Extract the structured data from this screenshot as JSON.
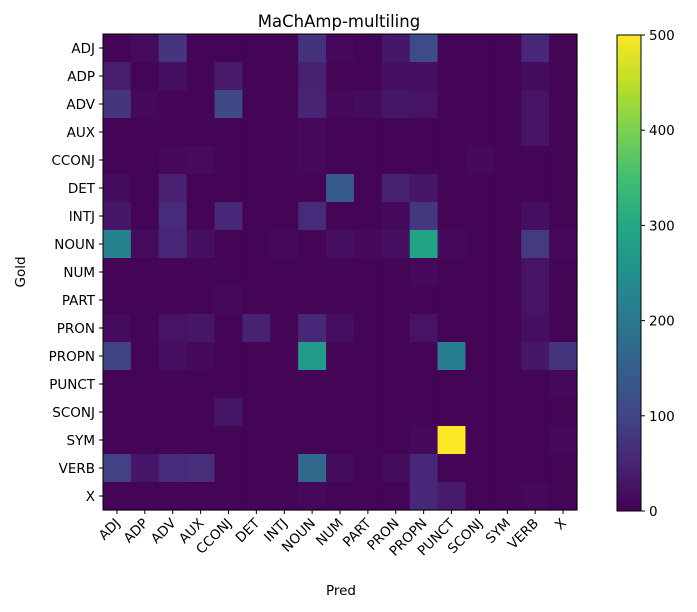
{
  "chart_data": {
    "type": "heatmap",
    "title": "MaChAmp-multiling",
    "xlabel": "Pred",
    "ylabel": "Gold",
    "x_categories": [
      "ADJ",
      "ADP",
      "ADV",
      "AUX",
      "CCONJ",
      "DET",
      "INTJ",
      "NOUN",
      "NUM",
      "PART",
      "PRON",
      "PROPN",
      "PUNCT",
      "SCONJ",
      "SYM",
      "VERB",
      "X"
    ],
    "y_categories": [
      "ADJ",
      "ADP",
      "ADV",
      "AUX",
      "CCONJ",
      "DET",
      "INTJ",
      "NOUN",
      "NUM",
      "PART",
      "PRON",
      "PROPN",
      "PUNCT",
      "SCONJ",
      "SYM",
      "VERB",
      "X"
    ],
    "values": [
      [
        5,
        15,
        75,
        5,
        5,
        5,
        5,
        70,
        10,
        5,
        30,
        115,
        5,
        5,
        5,
        55,
        5
      ],
      [
        40,
        5,
        20,
        5,
        35,
        5,
        5,
        45,
        5,
        5,
        20,
        20,
        5,
        5,
        5,
        15,
        5
      ],
      [
        75,
        10,
        5,
        5,
        110,
        5,
        5,
        50,
        10,
        15,
        30,
        25,
        5,
        5,
        5,
        25,
        5
      ],
      [
        5,
        5,
        5,
        5,
        5,
        5,
        5,
        10,
        5,
        5,
        5,
        5,
        5,
        5,
        5,
        25,
        5
      ],
      [
        5,
        5,
        10,
        15,
        5,
        5,
        5,
        10,
        5,
        5,
        5,
        5,
        5,
        10,
        5,
        5,
        5
      ],
      [
        15,
        5,
        45,
        5,
        5,
        5,
        5,
        5,
        140,
        5,
        45,
        30,
        5,
        5,
        5,
        5,
        5
      ],
      [
        30,
        5,
        60,
        5,
        55,
        5,
        5,
        60,
        5,
        5,
        10,
        80,
        5,
        5,
        5,
        20,
        5
      ],
      [
        220,
        15,
        55,
        20,
        5,
        5,
        10,
        5,
        20,
        10,
        20,
        290,
        10,
        5,
        5,
        85,
        10
      ],
      [
        5,
        5,
        5,
        5,
        5,
        5,
        5,
        5,
        5,
        5,
        5,
        10,
        5,
        5,
        5,
        25,
        5
      ],
      [
        5,
        5,
        5,
        5,
        10,
        5,
        5,
        5,
        5,
        5,
        5,
        5,
        5,
        5,
        5,
        25,
        5
      ],
      [
        15,
        5,
        25,
        30,
        5,
        45,
        5,
        55,
        20,
        5,
        5,
        25,
        5,
        5,
        5,
        20,
        5
      ],
      [
        100,
        5,
        20,
        10,
        5,
        5,
        5,
        270,
        5,
        5,
        5,
        5,
        210,
        5,
        5,
        30,
        75
      ],
      [
        5,
        5,
        5,
        5,
        5,
        5,
        5,
        5,
        5,
        5,
        5,
        5,
        5,
        5,
        5,
        5,
        10
      ],
      [
        5,
        5,
        5,
        5,
        30,
        5,
        5,
        5,
        5,
        5,
        5,
        5,
        5,
        5,
        5,
        5,
        5
      ],
      [
        5,
        5,
        5,
        5,
        5,
        5,
        5,
        5,
        5,
        5,
        5,
        10,
        500,
        5,
        5,
        5,
        10
      ],
      [
        95,
        30,
        60,
        65,
        5,
        5,
        5,
        170,
        15,
        5,
        15,
        55,
        5,
        5,
        5,
        5,
        5
      ],
      [
        5,
        5,
        5,
        5,
        5,
        5,
        5,
        10,
        5,
        5,
        5,
        55,
        35,
        5,
        5,
        10,
        5
      ]
    ],
    "vmin": 0,
    "vmax": 500,
    "colormap": "viridis",
    "colorbar_ticks": [
      0,
      100,
      200,
      300,
      400,
      500
    ],
    "colorbar_tick_labels": [
      "0",
      "100",
      "200",
      "300",
      "400",
      "500"
    ],
    "grid": false
  }
}
